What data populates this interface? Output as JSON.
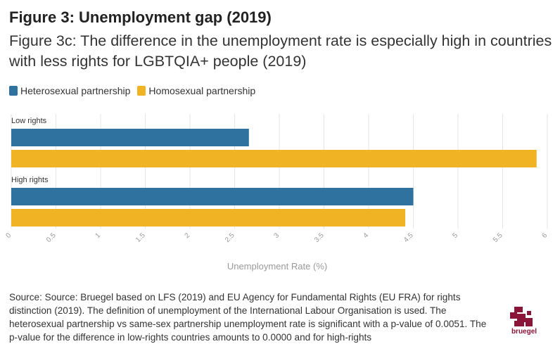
{
  "header": {
    "title": "Figure 3: Unemployment gap (2019)",
    "subtitle": "Figure 3c: The difference in the unemployment rate is especially high in countries with less rights for LGBTQIA+ people (2019)"
  },
  "legend": [
    {
      "label": "Heterosexual partnership",
      "color": "#2f72a0"
    },
    {
      "label": "Homosexual partnership",
      "color": "#f0b323"
    }
  ],
  "chart_data": {
    "type": "bar",
    "orientation": "horizontal",
    "categories": [
      "Low rights",
      "High rights"
    ],
    "series": [
      {
        "name": "Heterosexual partnership",
        "values": [
          2.66,
          4.5
        ],
        "color": "#2f72a0"
      },
      {
        "name": "Homosexual partnership",
        "values": [
          5.88,
          4.41
        ],
        "color": "#f0b323"
      }
    ],
    "xlabel": "Unemployment Rate (%)",
    "xlim": [
      0,
      6
    ],
    "xticks": [
      "0",
      "0.5",
      "1",
      "1.5",
      "2",
      "2.5",
      "3",
      "3.5",
      "4",
      "4.5",
      "5",
      "5.5",
      "6"
    ],
    "grid": true,
    "legend_position": "top-left"
  },
  "source": "Source: Source: Bruegel based on LFS (2019) and EU Agency for Fundamental Rights (EU FRA) for rights distinction (2019). The definition of unemployment of the International Labour Organisation is used. The heterosexual partnership vs same-sex partnership unemployment rate is significant with a p-value of 0.0051. The p-value for the difference in low-rights countries amounts to 0.0000 and for high-rights",
  "logo": {
    "text": "bruegel",
    "color": "#8a1538"
  }
}
